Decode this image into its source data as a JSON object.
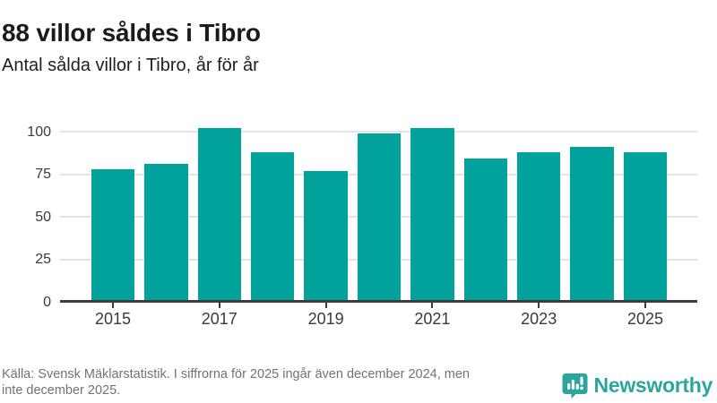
{
  "header": {
    "title": "88 villor såldes i Tibro",
    "subtitle": "Antal sålda villor i Tibro, år för år"
  },
  "chart_data": {
    "type": "bar",
    "title": "88 villor såldes i Tibro",
    "subtitle": "Antal sålda villor i Tibro, år för år",
    "categories": [
      "2015",
      "2016",
      "2017",
      "2018",
      "2019",
      "2020",
      "2021",
      "2022",
      "2023",
      "2024",
      "2025"
    ],
    "values": [
      78,
      81,
      102,
      88,
      77,
      99,
      102,
      84,
      88,
      91,
      88
    ],
    "xlabel": "",
    "ylabel": "",
    "ylim": [
      0,
      106
    ],
    "yticks": [
      0,
      25,
      50,
      75,
      100
    ],
    "xtick_labels": [
      "2015",
      "2017",
      "2019",
      "2021",
      "2023",
      "2025"
    ],
    "bar_color": "#00a29b",
    "grid": true,
    "legend": false
  },
  "footer": {
    "source_lines": [
      "Källa: Svensk Mäklarstatistik. I siffrorna för 2025 ingår även december 2024, men",
      "inte december 2025."
    ]
  },
  "logo": {
    "wordmark": "Newsworthy",
    "icon": "newsworthy-bar-chart-bubble-icon",
    "color": "#2ba59e"
  }
}
